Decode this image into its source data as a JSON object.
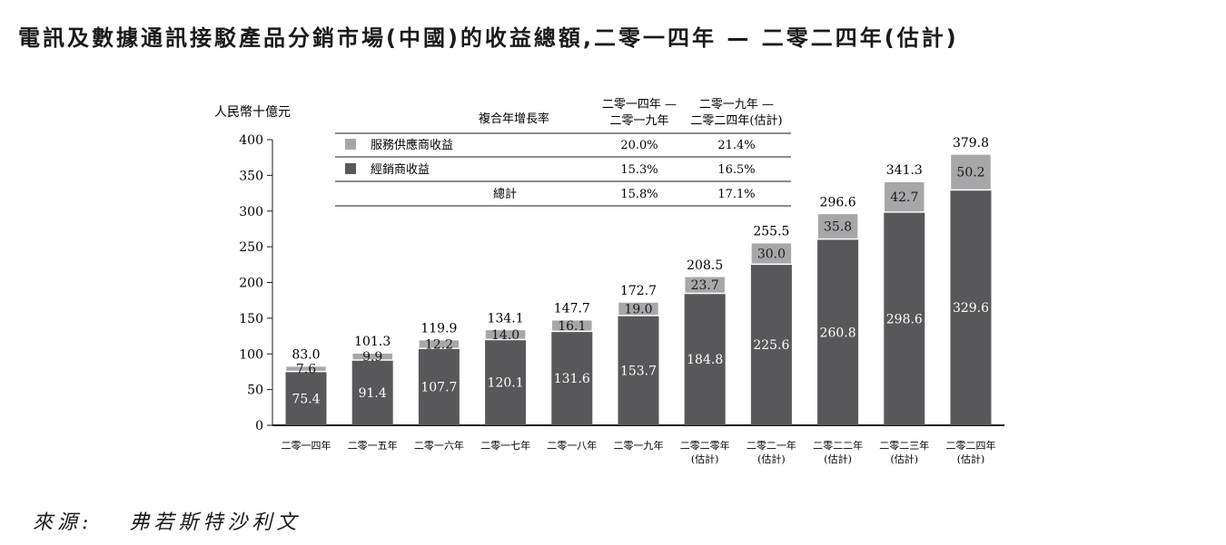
{
  "title": "電訊及數據通訊接駁產品分銷市場(中國)的收益總額,二零一四年 — 二零二四年(估計)",
  "source": {
    "label": "來源:",
    "value": "弗若斯特沙利文"
  },
  "chart_data": {
    "type": "bar",
    "stacked": true,
    "ylabel": "人民幣十億元",
    "ylim": [
      0,
      400
    ],
    "yticks": [
      0,
      50,
      100,
      150,
      200,
      250,
      300,
      350,
      400
    ],
    "grid": false,
    "categories": [
      [
        "二零一四年"
      ],
      [
        "二零一五年"
      ],
      [
        "二零一六年"
      ],
      [
        "二零一七年"
      ],
      [
        "二零一八年"
      ],
      [
        "二零一九年"
      ],
      [
        "二零二零年",
        "(估計)"
      ],
      [
        "二零二一年",
        "(估計)"
      ],
      [
        "二零二二年",
        "(估計)"
      ],
      [
        "二零二三年",
        "(估計)"
      ],
      [
        "二零二四年",
        "(估計)"
      ]
    ],
    "series": [
      {
        "name": "經銷商收益",
        "color": "#58585a",
        "label_color": "#ffffff",
        "values": [
          75.4,
          91.4,
          107.7,
          120.1,
          131.6,
          153.7,
          184.8,
          225.6,
          260.8,
          298.6,
          329.6
        ]
      },
      {
        "name": "服務供應商收益",
        "color": "#a7a7a9",
        "label_color": "#1a1a1a",
        "values": [
          7.6,
          9.9,
          12.2,
          14.0,
          16.1,
          19.0,
          23.7,
          30.0,
          35.8,
          42.7,
          50.2
        ]
      }
    ],
    "totals": [
      83.0,
      101.3,
      119.9,
      134.1,
      147.7,
      172.7,
      208.5,
      255.5,
      296.6,
      341.3,
      379.8
    ],
    "cagr_table": {
      "header": "複合年增長率",
      "period_1": [
        "二零一四年 —",
        "二零一九年"
      ],
      "period_2": [
        "二零一九年 —",
        "二零二四年(估計)"
      ],
      "rows": [
        {
          "label": "服務供應商收益",
          "swatch": "#a7a7a9",
          "p1": "20.0%",
          "p2": "21.4%"
        },
        {
          "label": "經銷商收益",
          "swatch": "#58585a",
          "p1": "15.3%",
          "p2": "16.5%"
        },
        {
          "label": "總計",
          "swatch": "",
          "p1": "15.8%",
          "p2": "17.1%"
        }
      ]
    }
  }
}
